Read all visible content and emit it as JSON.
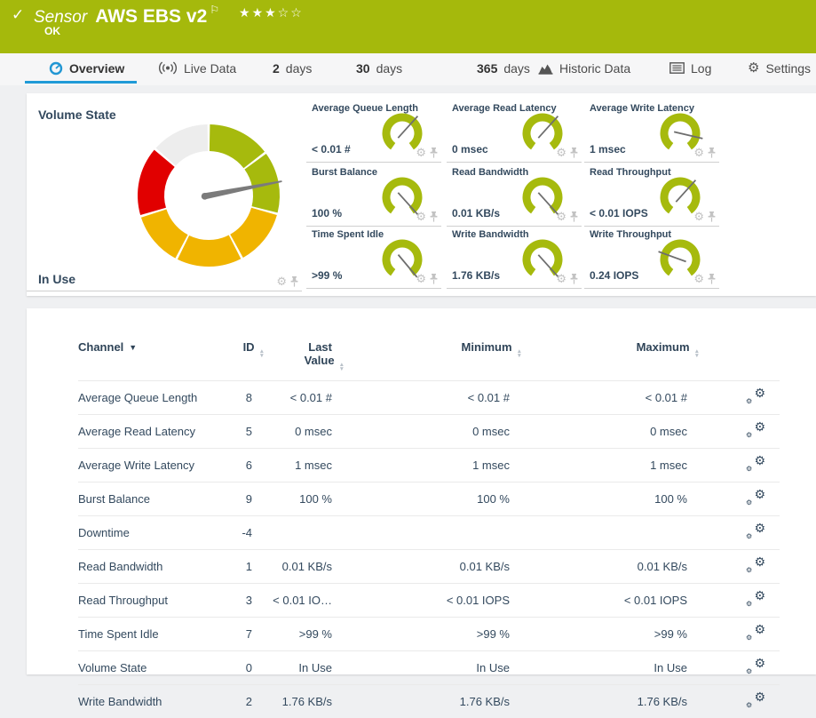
{
  "colors": {
    "banner_green": "#a5b90c",
    "accent_blue": "#1f9ad7",
    "gauge_green": "#a6ba0d",
    "gauge_yellow": "#f0b400",
    "gauge_red": "#e10000",
    "gauge_gray": "#ededed",
    "needle_gray": "#7b7b7b",
    "mini_needle": "#6e6e6e",
    "text_navy": "#33495e"
  },
  "header": {
    "check": "✓",
    "kind": "Sensor",
    "title": "AWS EBS v2",
    "flag": "⚐",
    "stars": "★★★☆☆",
    "status": "OK"
  },
  "tabs": [
    {
      "label": "Overview",
      "active": true
    },
    {
      "label": "Live Data",
      "active": false
    },
    {
      "num": "2",
      "label": "days",
      "active": false
    },
    {
      "num": "30",
      "label": "days",
      "active": false
    },
    {
      "num": "365",
      "label": "days",
      "active": false
    },
    {
      "label": "Historic Data",
      "active": false
    },
    {
      "label": "Log",
      "active": false
    },
    {
      "label": "Settings",
      "active": false
    }
  ],
  "gauges": {
    "primary": {
      "title": "Volume State",
      "value": "In Use",
      "needle_deg": 79,
      "segments": [
        {
          "color": "#a6ba0d",
          "from": 1,
          "to": 52
        },
        {
          "color": "#a6ba0d",
          "from": 54,
          "to": 104
        },
        {
          "color": "#f0b400",
          "from": 106,
          "to": 151
        },
        {
          "color": "#f0b400",
          "from": 153,
          "to": 206
        },
        {
          "color": "#f0b400",
          "from": 208,
          "to": 252
        },
        {
          "color": "#e10000",
          "from": 254,
          "to": 310
        },
        {
          "color": "#ededed",
          "from": 312,
          "to": 359
        }
      ]
    },
    "minis": [
      {
        "label": "Average Queue Length",
        "value": "< 0.01 #",
        "needle_deg": 42
      },
      {
        "label": "Average Read Latency",
        "value": "0 msec",
        "needle_deg": 42
      },
      {
        "label": "Average Write Latency",
        "value": "1 msec",
        "needle_deg": 103
      },
      {
        "label": "Burst Balance",
        "value": "100 %",
        "needle_deg": 138
      },
      {
        "label": "Read Bandwidth",
        "value": "0.01 KB/s",
        "needle_deg": 138
      },
      {
        "label": "Read Throughput",
        "value": "< 0.01 IOPS",
        "needle_deg": 42
      },
      {
        "label": "Time Spent Idle",
        "value": ">99 %",
        "needle_deg": 140
      },
      {
        "label": "Write Bandwidth",
        "value": "1.76 KB/s",
        "needle_deg": 138
      },
      {
        "label": "Write Throughput",
        "value": "0.24 IOPS",
        "needle_deg": 290
      }
    ]
  },
  "table": {
    "header": {
      "channel": "Channel",
      "id": "ID",
      "last1": "Last",
      "last2": "Value",
      "min": "Minimum",
      "max": "Maximum"
    },
    "rows": [
      {
        "channel": "Average Queue Length",
        "id": "8",
        "last": "< 0.01 #",
        "min": "< 0.01 #",
        "max": "< 0.01 #"
      },
      {
        "channel": "Average Read Latency",
        "id": "5",
        "last": "0 msec",
        "min": "0 msec",
        "max": "0 msec"
      },
      {
        "channel": "Average Write Latency",
        "id": "6",
        "last": "1 msec",
        "min": "1 msec",
        "max": "1 msec"
      },
      {
        "channel": "Burst Balance",
        "id": "9",
        "last": "100 %",
        "min": "100 %",
        "max": "100 %"
      },
      {
        "channel": "Downtime",
        "id": "-4",
        "last": "",
        "min": "",
        "max": ""
      },
      {
        "channel": "Read Bandwidth",
        "id": "1",
        "last": "0.01 KB/s",
        "min": "0.01 KB/s",
        "max": "0.01 KB/s"
      },
      {
        "channel": "Read Throughput",
        "id": "3",
        "last": "< 0.01 IO…",
        "min": "< 0.01 IOPS",
        "max": "< 0.01 IOPS"
      },
      {
        "channel": "Time Spent Idle",
        "id": "7",
        "last": ">99 %",
        "min": ">99 %",
        "max": ">99 %"
      },
      {
        "channel": "Volume State",
        "id": "0",
        "last": "In Use",
        "min": "In Use",
        "max": "In Use"
      },
      {
        "channel": "Write Bandwidth",
        "id": "2",
        "last": "1.76 KB/s",
        "min": "1.76 KB/s",
        "max": "1.76 KB/s"
      }
    ]
  }
}
